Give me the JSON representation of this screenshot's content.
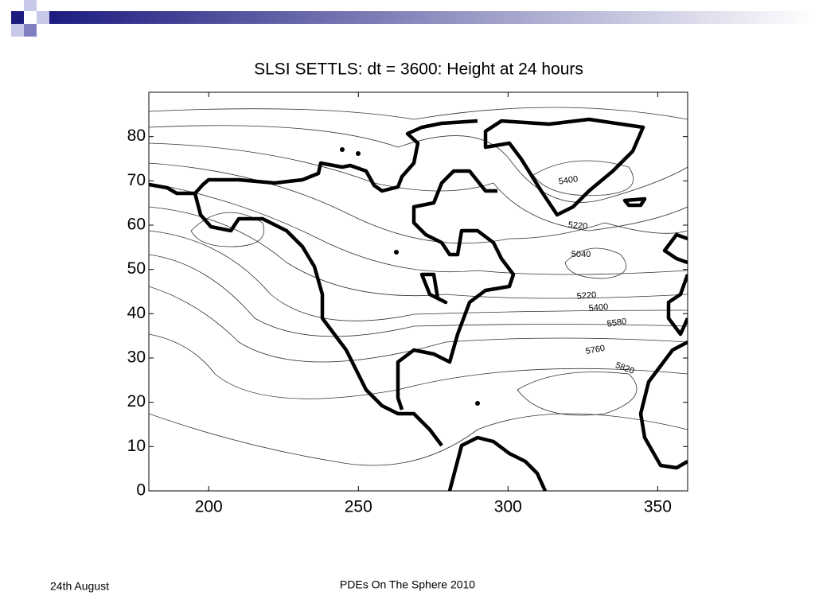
{
  "chart_data": {
    "type": "contour",
    "title": "SLSI SETTLS: dt = 3600: Height at 24 hours",
    "xlim": [
      180,
      360
    ],
    "xticks": [
      200,
      250,
      300,
      350
    ],
    "ylim": [
      0,
      90
    ],
    "yticks": [
      0,
      10,
      20,
      30,
      40,
      50,
      60,
      70,
      80
    ],
    "contour_labels": [
      5400,
      5220,
      5040,
      5220,
      5400,
      5580,
      5760,
      5820
    ]
  },
  "footer": {
    "date": "24th August",
    "title": "PDEs On The Sphere 2010"
  }
}
